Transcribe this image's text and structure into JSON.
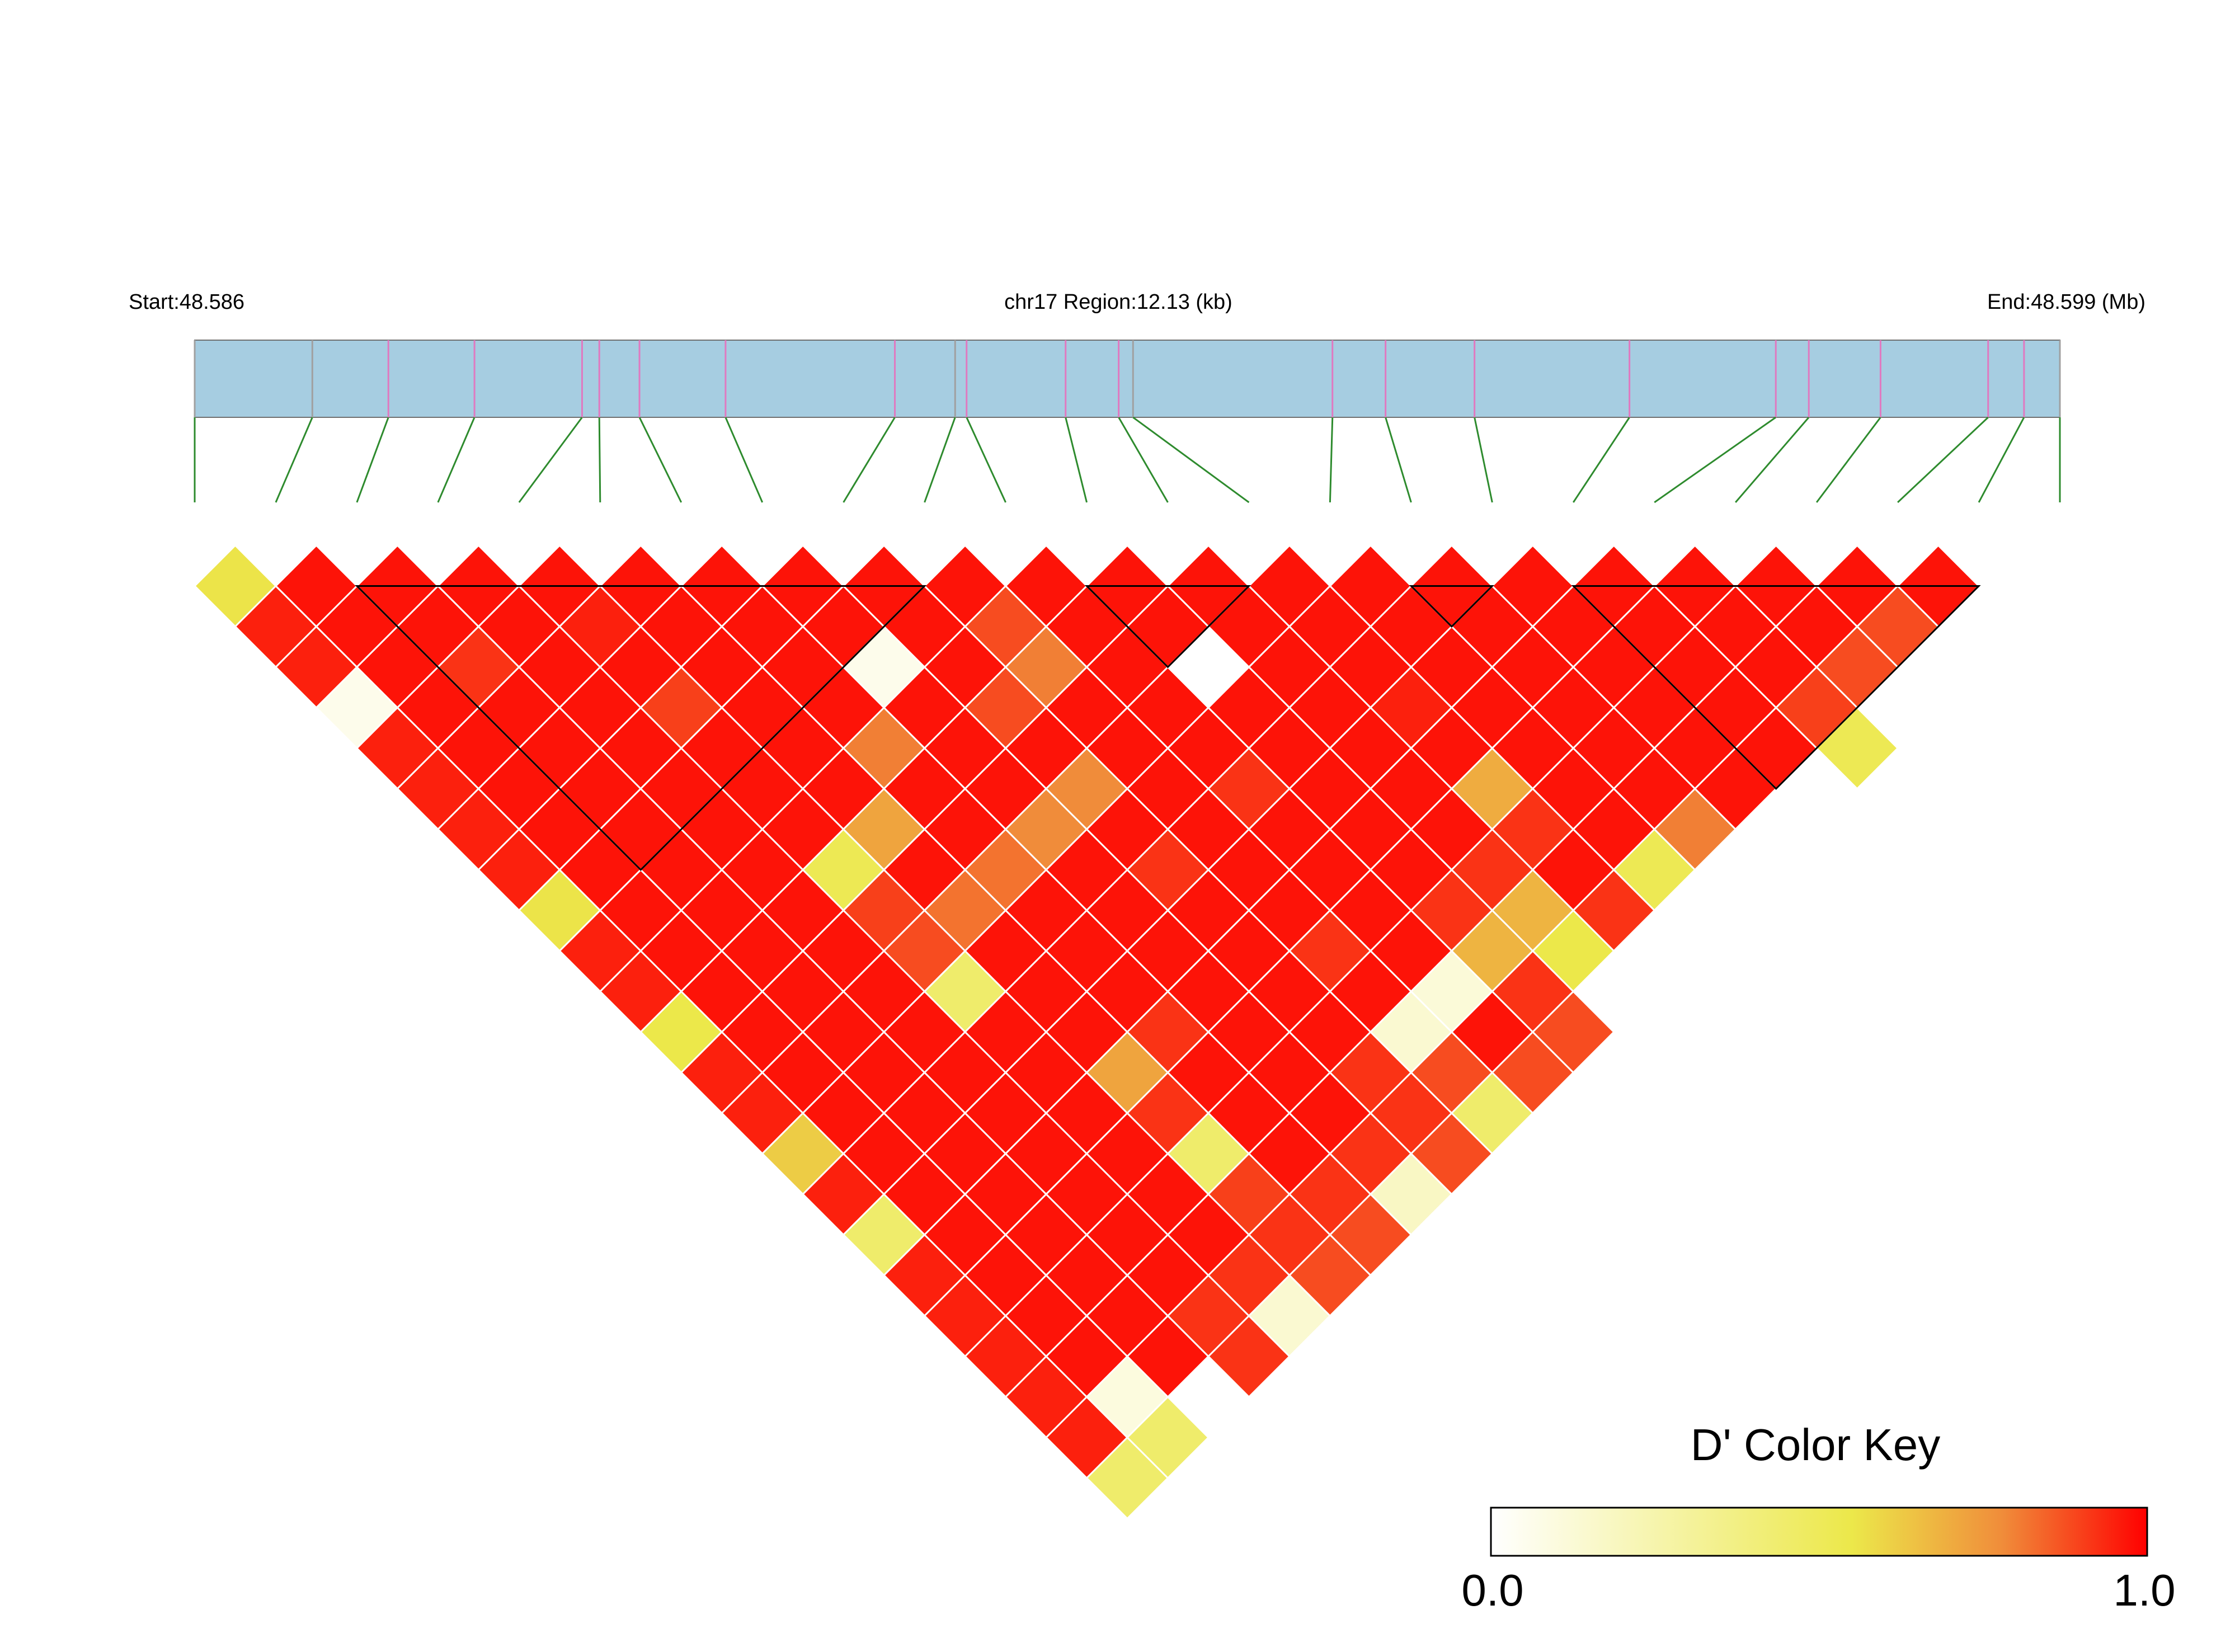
{
  "chart_data": {
    "type": "heatmap",
    "header": {
      "start_label": "Start:48.586",
      "region_label": "chr17 Region:12.13 (kb)",
      "end_label": "End:48.599 (Mb)"
    },
    "chromosome": "chr17",
    "region_start_mb": 48.586,
    "region_end_mb": 48.599,
    "region_size_kb": 12.13,
    "snp_count": 24,
    "snp_positions_mb": [
      48.586,
      48.58682,
      48.58735,
      48.58795,
      48.5887,
      48.58882,
      48.5891,
      48.5897,
      48.59088,
      48.5913,
      48.59138,
      48.59207,
      48.59244,
      48.59254,
      48.59393,
      48.5943,
      48.59492,
      48.596,
      48.59702,
      48.59725,
      48.59775,
      48.5985,
      48.59875,
      48.599
    ],
    "marker_colors": [
      "#a0a0a0",
      "#a0a0a0",
      "#e079c0",
      "#e079c0",
      "#e079c0",
      "#e079c0",
      "#e079c0",
      "#e079c0",
      "#e079c0",
      "#a0a0a0",
      "#e079c0",
      "#e079c0",
      "#e079c0",
      "#a0a0a0",
      "#e079c0",
      "#e079c0",
      "#e079c0",
      "#e079c0",
      "#e079c0",
      "#e079c0",
      "#e079c0",
      "#e079c0",
      "#e079c0",
      "#a0a0a0"
    ],
    "dprime_values": [
      [
        0.56,
        0.95,
        0.95,
        0.06,
        0.95,
        0.95,
        0.95,
        0.95,
        0.56,
        0.95,
        0.95,
        0.55,
        0.95,
        0.95,
        0.62,
        0.95,
        0.45,
        0.95,
        0.95,
        0.95,
        0.95,
        0.95,
        0.52
      ],
      [
        0.97,
        0.97,
        0.97,
        0.97,
        0.97,
        0.97,
        0.97,
        0.97,
        0.97,
        0.97,
        0.97,
        0.97,
        0.97,
        0.97,
        0.97,
        0.97,
        0.97,
        0.97,
        0.97,
        0.97,
        0.1
      ],
      [
        0.97,
        0.97,
        0.92,
        0.97,
        0.97,
        0.97,
        0.97,
        0.97,
        0.97,
        0.97,
        0.97,
        0.97,
        0.97,
        0.97,
        0.97,
        0.97,
        0.97,
        0.97,
        0.97,
        0.52
      ],
      [
        0.97,
        0.97,
        0.97,
        0.97,
        0.97,
        0.97,
        0.97,
        0.97,
        0.97,
        0.97,
        0.97,
        0.97,
        0.97,
        0.97,
        0.97,
        0.97,
        0.97,
        0.97,
        0.92
      ],
      [
        0.97,
        0.97,
        0.97,
        0.97,
        0.97,
        0.97,
        0.97,
        0.97,
        0.97,
        0.97,
        0.97,
        0.97,
        0.97,
        0.97,
        0.97,
        0.97,
        0.97,
        0.97
      ],
      [
        0.97,
        0.97,
        0.97,
        0.97,
        0.97,
        0.97,
        0.97,
        0.97,
        0.97,
        0.97,
        0.97,
        0.97,
        0.97,
        0.97,
        0.97,
        0.97,
        0.97
      ],
      [
        0.97,
        0.97,
        0.97,
        0.97,
        0.97,
        0.97,
        0.97,
        0.97,
        0.97,
        0.97,
        0.97,
        0.97,
        0.97,
        0.97,
        0.97,
        0.97
      ],
      [
        0.97,
        0.97,
        0.97,
        0.97,
        0.97,
        0.97,
        0.97,
        0.97,
        0.97,
        0.97,
        0.97,
        0.97,
        0.97,
        0.97,
        0.97
      ],
      [
        0.97,
        0.97,
        0.97,
        0.97,
        0.97,
        0.97,
        0.97,
        0.97,
        0.97,
        0.97,
        0.97,
        0.97,
        0.97,
        0.97
      ],
      [
        0.97,
        0.97,
        0.97,
        0.97,
        0.97,
        0.97,
        0.97,
        0.97,
        0.97,
        0.97,
        0.97,
        0.97,
        0.97
      ],
      [
        0.97,
        0.97,
        0.97,
        0.97,
        0.97,
        0.97,
        0.97,
        0.97,
        0.97,
        0.97,
        0.97,
        0.97
      ],
      [
        0.97,
        0.97,
        0.97,
        0.97,
        0.97,
        0.97,
        0.97,
        0.97,
        0.97,
        0.97,
        0.97
      ],
      [
        0.97,
        0.97,
        0.97,
        0.97,
        0.97,
        0.97,
        0.97,
        0.97,
        0.97,
        0.97
      ],
      [
        0.97,
        0.97,
        0.97,
        0.97,
        0.97,
        0.97,
        0.97,
        0.97,
        0.97
      ],
      [
        0.97,
        0.97,
        0.97,
        0.97,
        0.97,
        0.97,
        0.97,
        0.97
      ],
      [
        0.97,
        0.97,
        0.97,
        0.97,
        0.97,
        0.97,
        0.97
      ],
      [
        0.97,
        0.97,
        0.97,
        0.97,
        0.97,
        0.97
      ],
      [
        0.97,
        0.97,
        0.97,
        0.97,
        0.97
      ],
      [
        0.97,
        0.97,
        0.97,
        0.97
      ],
      [
        0.97,
        0.97,
        0.97
      ],
      [
        0.97,
        0.97
      ],
      [
        0.97
      ]
    ],
    "dprime_overrides": [
      {
        "i": 1,
        "j": 3,
        "value": 0.97
      },
      {
        "i": 2,
        "j": 4,
        "value": 0.97
      },
      {
        "i": 3,
        "j": 5,
        "value": 0.97
      },
      {
        "i": 4,
        "j": 6,
        "value": 0.95
      },
      {
        "i": 9,
        "j": 11,
        "value": 0.88
      },
      {
        "i": 10,
        "j": 12,
        "value": 0.97
      },
      {
        "i": 20,
        "j": 22,
        "value": 0.88
      },
      {
        "i": 7,
        "j": 10,
        "value": 0.06
      },
      {
        "i": 9,
        "j": 12,
        "value": 0.8
      },
      {
        "i": 11,
        "j": 14,
        "value": 0.0
      },
      {
        "i": 19,
        "j": 22,
        "value": 0.88
      },
      {
        "i": 4,
        "j": 8,
        "value": 0.9
      },
      {
        "i": 8,
        "j": 12,
        "value": 0.88
      },
      {
        "i": 13,
        "j": 17,
        "value": 0.95
      },
      {
        "i": 18,
        "j": 22,
        "value": 0.9
      },
      {
        "i": 6,
        "j": 11,
        "value": 0.8
      },
      {
        "i": 18,
        "j": 23,
        "value": 0.52
      },
      {
        "i": 8,
        "j": 14,
        "value": 0.78
      },
      {
        "i": 10,
        "j": 16,
        "value": 0.92
      },
      {
        "i": 13,
        "j": 19,
        "value": 0.7
      },
      {
        "i": 5,
        "j": 12,
        "value": 0.72
      },
      {
        "i": 7,
        "j": 14,
        "value": 0.78
      },
      {
        "i": 13,
        "j": 20,
        "value": 0.92
      },
      {
        "i": 15,
        "j": 22,
        "value": 0.8
      },
      {
        "i": 4,
        "j": 12,
        "value": 0.52
      },
      {
        "i": 6,
        "j": 14,
        "value": 0.82
      },
      {
        "i": 8,
        "j": 16,
        "value": 0.92
      },
      {
        "i": 12,
        "j": 20,
        "value": 0.92
      },
      {
        "i": 14,
        "j": 22,
        "value": 0.52
      },
      {
        "i": 4,
        "j": 13,
        "value": 0.9
      },
      {
        "i": 5,
        "j": 14,
        "value": 0.82
      },
      {
        "i": 11,
        "j": 20,
        "value": 0.92
      },
      {
        "i": 12,
        "j": 21,
        "value": 0.68
      },
      {
        "i": 13,
        "j": 22,
        "value": 0.92
      },
      {
        "i": 4,
        "j": 14,
        "value": 0.88
      },
      {
        "i": 9,
        "j": 19,
        "value": 0.92
      },
      {
        "i": 11,
        "j": 21,
        "value": 0.68
      },
      {
        "i": 12,
        "j": 22,
        "value": 0.55
      },
      {
        "i": 4,
        "j": 15,
        "value": 0.45
      },
      {
        "i": 10,
        "j": 21,
        "value": 0.12
      },
      {
        "i": 11,
        "j": 22,
        "value": 0.92
      },
      {
        "i": 6,
        "j": 18,
        "value": 0.92
      },
      {
        "i": 9,
        "j": 21,
        "value": 0.14
      },
      {
        "i": 11,
        "j": 23,
        "value": 0.88
      },
      {
        "i": 5,
        "j": 18,
        "value": 0.72
      },
      {
        "i": 8,
        "j": 21,
        "value": 0.92
      },
      {
        "i": 9,
        "j": 22,
        "value": 0.88
      },
      {
        "i": 10,
        "j": 23,
        "value": 0.88
      },
      {
        "i": 5,
        "j": 19,
        "value": 0.92
      },
      {
        "i": 8,
        "j": 22,
        "value": 0.92
      },
      {
        "i": 9,
        "j": 23,
        "value": 0.45
      },
      {
        "i": 5,
        "j": 20,
        "value": 0.45
      },
      {
        "i": 7,
        "j": 22,
        "value": 0.92
      },
      {
        "i": 8,
        "j": 23,
        "value": 0.88
      },
      {
        "i": 5,
        "j": 21,
        "value": 0.9
      },
      {
        "i": 6,
        "j": 22,
        "value": 0.92
      },
      {
        "i": 7,
        "j": 23,
        "value": 0.18
      },
      {
        "i": 6,
        "j": 23,
        "value": 0.88
      },
      {
        "i": 5,
        "j": 22,
        "value": 0.92
      },
      {
        "i": 4,
        "j": 22,
        "value": 0.92
      },
      {
        "i": 5,
        "j": 23,
        "value": 0.88
      },
      {
        "i": 4,
        "j": 23,
        "value": 0.14
      },
      {
        "i": 3,
        "j": 23,
        "value": 0.92
      },
      {
        "i": 2,
        "j": 22,
        "value": 0.97
      },
      {
        "i": 1,
        "j": 23,
        "value": 0.45
      },
      {
        "i": 0,
        "j": 23,
        "value": 0.45
      }
    ],
    "blocks": [
      [
        2,
        9
      ],
      [
        11,
        13
      ],
      [
        15,
        16
      ],
      [
        17,
        22
      ]
    ],
    "color_key": {
      "title": "D' Color Key",
      "min_label": "0.0",
      "max_label": "1.0",
      "min": 0.0,
      "max": 1.0,
      "colors": [
        "#ffffff",
        "#ece84a",
        "#f08c3a",
        "#ff0000"
      ]
    },
    "colors": {
      "region_bar": "#a6cde1",
      "region_bar_edge": "#707070",
      "connector": "#2e8b2e",
      "cell_border": "#ffffff",
      "block_outline": "#000000"
    }
  }
}
